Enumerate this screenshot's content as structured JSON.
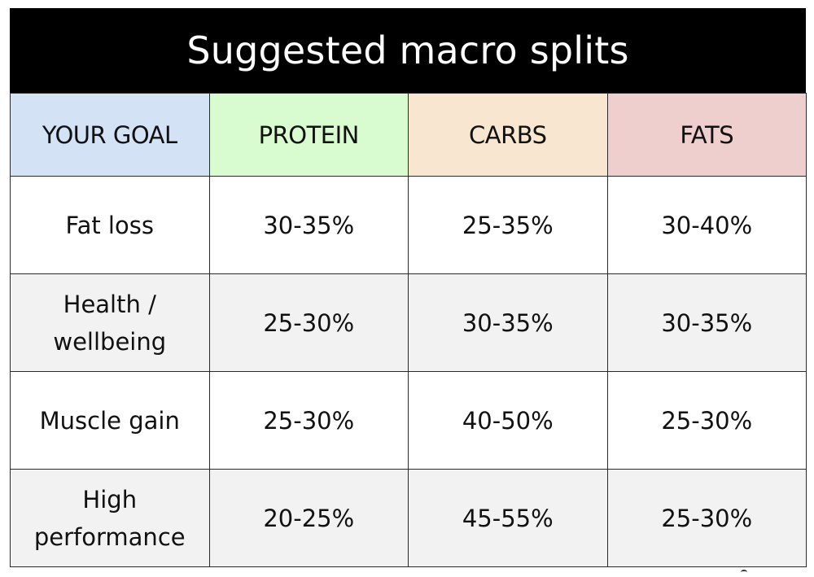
{
  "title": "Suggested macro splits",
  "header_colors": {
    "goal": "#d3e3f5",
    "protein": "#d8fbd0",
    "carbs": "#f8e6d0",
    "fats": "#efcfcd"
  },
  "headers": [
    "YOUR GOAL",
    "PROTEIN",
    "CARBS",
    "FATS"
  ],
  "rows": [
    {
      "goal": "Fat loss",
      "protein": "30-35%",
      "carbs": "25-35%",
      "fats": "30-40%"
    },
    {
      "goal": "Health / wellbeing",
      "protein": "25-30%",
      "carbs": "30-35%",
      "fats": "30-35%"
    },
    {
      "goal": "Muscle gain",
      "protein": "25-30%",
      "carbs": "40-50%",
      "fats": "25-30%"
    },
    {
      "goal": "High performance",
      "protein": "20-25%",
      "carbs": "45-55%",
      "fats": "25-30%"
    }
  ]
}
